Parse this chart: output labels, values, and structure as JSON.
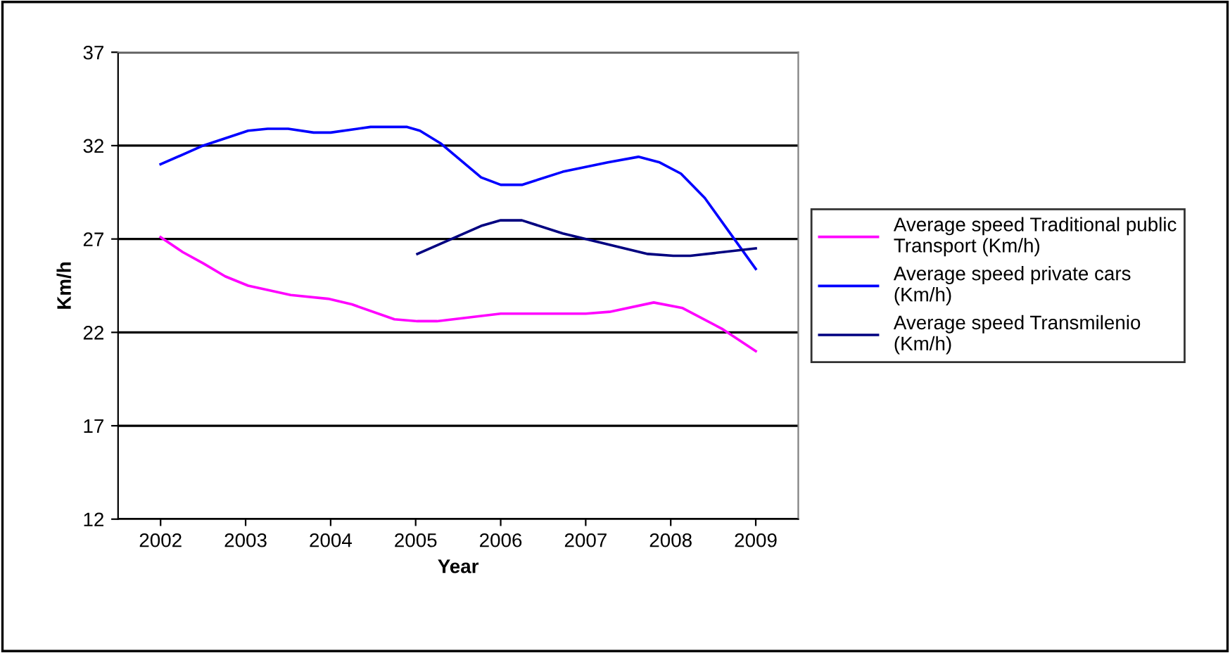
{
  "chart_data": {
    "type": "line",
    "xlabel": "Year",
    "ylabel": "Km/h",
    "xlim": [
      2001.5,
      2009.5
    ],
    "xticks": [
      2002,
      2003,
      2004,
      2005,
      2006,
      2007,
      2008,
      2009
    ],
    "ylim": [
      12,
      37
    ],
    "yticks": [
      12,
      17,
      22,
      27,
      32,
      37
    ],
    "grid": "y",
    "legend": "right",
    "marker": "none",
    "line_style": "solid",
    "series": [
      {
        "name": "Average speed Traditional public Transport (Km/h)",
        "color": "#ff00ff",
        "x": [
          2002,
          2002.26,
          2002.5,
          2002.76,
          2003.03,
          2003.53,
          2003.97,
          2004.25,
          2004.75,
          2005.02,
          2005.25,
          2006.0,
          2007.0,
          2007.28,
          2007.8,
          2008.14,
          2008.6,
          2009.0
        ],
        "values": [
          27.1,
          26.3,
          25.7,
          25.0,
          24.5,
          24.0,
          23.8,
          23.5,
          22.7,
          22.6,
          22.6,
          23.0,
          23.0,
          23.1,
          23.6,
          23.3,
          22.2,
          21.0
        ]
      },
      {
        "name": "Average speed private cars (Km/h)",
        "color": "#0000ff",
        "x": [
          2002,
          2002.5,
          2003.03,
          2003.26,
          2003.5,
          2003.8,
          2004.0,
          2004.47,
          2004.9,
          2005.05,
          2005.3,
          2005.77,
          2006.0,
          2006.25,
          2006.73,
          2007.26,
          2007.62,
          2007.87,
          2008.12,
          2008.4,
          2009.0
        ],
        "values": [
          31.0,
          32.0,
          32.8,
          32.9,
          32.9,
          32.7,
          32.7,
          33.0,
          33.0,
          32.8,
          32.1,
          30.3,
          29.9,
          29.9,
          30.6,
          31.1,
          31.4,
          31.1,
          30.5,
          29.2,
          25.4
        ]
      },
      {
        "name": "Average speed Transmilenio (Km/h)",
        "color": "#000080",
        "x": [
          2005.02,
          2005.77,
          2006.0,
          2006.25,
          2006.73,
          2007.73,
          2008.03,
          2008.23,
          2009.0
        ],
        "values": [
          26.2,
          27.7,
          28.0,
          28.0,
          27.3,
          26.2,
          26.1,
          26.1,
          26.5
        ]
      }
    ]
  }
}
